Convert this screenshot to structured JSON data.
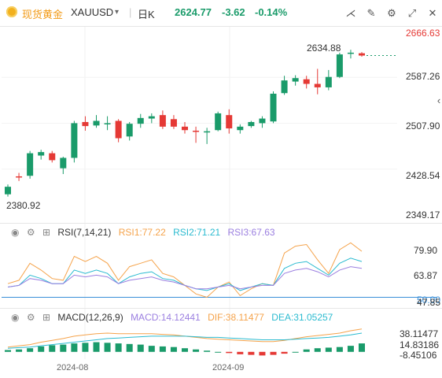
{
  "header": {
    "name": "现货黄金",
    "symbol": "XAUUSD",
    "period": "日K",
    "price": "2624.77",
    "change": "-3.62",
    "change_pct": "-0.14%",
    "colors": {
      "up": "#1a9b6a",
      "down": "#e53935"
    },
    "icons": [
      "gold-coin-icon",
      "chevron-down-icon",
      "compare-icon",
      "draw-icon",
      "settings-icon",
      "fullscreen-icon",
      "close-icon",
      "collapse-panel-icon"
    ]
  },
  "chart_data": [
    {
      "type": "candlestick",
      "title": "XAUUSD 日K",
      "x_tick_labels": [
        "2024-08",
        "2024-09"
      ],
      "y_tick_labels": [
        "2666.63",
        "2587.26",
        "2507.90",
        "2428.54",
        "2349.17"
      ],
      "ylim": [
        2349.17,
        2666.63
      ],
      "annotations": {
        "high": "2634.88",
        "low": "2380.92"
      },
      "candles": [
        {
          "o": 2385,
          "h": 2402,
          "l": 2381,
          "c": 2398
        },
        {
          "o": 2416,
          "h": 2422,
          "l": 2408,
          "c": 2414
        },
        {
          "o": 2417,
          "h": 2460,
          "l": 2412,
          "c": 2456
        },
        {
          "o": 2452,
          "h": 2462,
          "l": 2445,
          "c": 2458
        },
        {
          "o": 2456,
          "h": 2460,
          "l": 2440,
          "c": 2444
        },
        {
          "o": 2430,
          "h": 2450,
          "l": 2420,
          "c": 2448
        },
        {
          "o": 2448,
          "h": 2512,
          "l": 2440,
          "c": 2508
        },
        {
          "o": 2510,
          "h": 2520,
          "l": 2495,
          "c": 2503
        },
        {
          "o": 2504,
          "h": 2522,
          "l": 2500,
          "c": 2512
        },
        {
          "o": 2508,
          "h": 2520,
          "l": 2496,
          "c": 2508
        },
        {
          "o": 2512,
          "h": 2515,
          "l": 2475,
          "c": 2482
        },
        {
          "o": 2485,
          "h": 2510,
          "l": 2478,
          "c": 2507
        },
        {
          "o": 2507,
          "h": 2524,
          "l": 2500,
          "c": 2517
        },
        {
          "o": 2516,
          "h": 2525,
          "l": 2508,
          "c": 2520
        },
        {
          "o": 2522,
          "h": 2530,
          "l": 2498,
          "c": 2502
        },
        {
          "o": 2515,
          "h": 2522,
          "l": 2498,
          "c": 2502
        },
        {
          "o": 2502,
          "h": 2510,
          "l": 2490,
          "c": 2496
        },
        {
          "o": 2495,
          "h": 2502,
          "l": 2474,
          "c": 2493
        },
        {
          "o": 2492,
          "h": 2500,
          "l": 2472,
          "c": 2494
        },
        {
          "o": 2496,
          "h": 2528,
          "l": 2494,
          "c": 2525
        },
        {
          "o": 2522,
          "h": 2532,
          "l": 2490,
          "c": 2499
        },
        {
          "o": 2496,
          "h": 2506,
          "l": 2490,
          "c": 2502
        },
        {
          "o": 2503,
          "h": 2512,
          "l": 2500,
          "c": 2510
        },
        {
          "o": 2508,
          "h": 2520,
          "l": 2500,
          "c": 2516
        },
        {
          "o": 2511,
          "h": 2563,
          "l": 2508,
          "c": 2559
        },
        {
          "o": 2560,
          "h": 2590,
          "l": 2557,
          "c": 2582
        },
        {
          "o": 2580,
          "h": 2591,
          "l": 2573,
          "c": 2586
        },
        {
          "o": 2584,
          "h": 2590,
          "l": 2568,
          "c": 2576
        },
        {
          "o": 2576,
          "h": 2602,
          "l": 2558,
          "c": 2570
        },
        {
          "o": 2570,
          "h": 2600,
          "l": 2565,
          "c": 2588
        },
        {
          "o": 2588,
          "h": 2630,
          "l": 2586,
          "c": 2627
        },
        {
          "o": 2629,
          "h": 2635,
          "l": 2620,
          "c": 2630
        },
        {
          "o": 2629,
          "h": 2631,
          "l": 2623,
          "c": 2625
        }
      ]
    },
    {
      "type": "line",
      "title": "RSI(7,14,21)",
      "y_tick_labels": [
        "79.90",
        "63.87",
        "50.00",
        "47.85"
      ],
      "ylim": [
        47,
        84
      ],
      "series": [
        {
          "name": "RSI1",
          "label": "RSI1:77.22",
          "color": "#f5a34b",
          "values": [
            58,
            60,
            70,
            66,
            61,
            60,
            74,
            71,
            74,
            70,
            60,
            68,
            70,
            72,
            64,
            62,
            57,
            52,
            50,
            56,
            59,
            51,
            55,
            58,
            57,
            76,
            80,
            81,
            72,
            64,
            78,
            82,
            77
          ]
        },
        {
          "name": "RSI2",
          "label": "RSI2:71.21",
          "color": "#2bbbd0",
          "values": [
            56,
            57,
            63,
            61,
            58,
            58,
            66,
            64,
            66,
            64,
            58,
            62,
            64,
            65,
            61,
            60,
            57,
            55,
            54,
            56,
            58,
            54,
            56,
            58,
            57,
            67,
            70,
            71,
            67,
            63,
            70,
            73,
            71
          ]
        },
        {
          "name": "RSI3",
          "label": "RSI3:67.63",
          "color": "#9b7fe0",
          "values": [
            56,
            57,
            61,
            60,
            58,
            58,
            63,
            62,
            63,
            62,
            58,
            60,
            61,
            62,
            60,
            59,
            57,
            55,
            55,
            56,
            57,
            55,
            56,
            57,
            57,
            64,
            66,
            67,
            65,
            62,
            66,
            68,
            67
          ]
        }
      ]
    },
    {
      "type": "bar+line",
      "title": "MACD(12,26,9)",
      "y_tick_labels": [
        "38.11477",
        "14.83186",
        "-8.45106"
      ],
      "ylim": [
        -12,
        48
      ],
      "series": [
        {
          "name": "MACD",
          "label": "MACD:14.12441",
          "type": "bar",
          "values": [
            3,
            4,
            6,
            9,
            11,
            12,
            14,
            15,
            16,
            15,
            14,
            13,
            12,
            10,
            9,
            8,
            6,
            4,
            2,
            0,
            -2,
            -4,
            -5,
            -6,
            -5,
            -3,
            0,
            4,
            6,
            7,
            8,
            10,
            14
          ]
        },
        {
          "name": "DIF",
          "label": "DIF:38.11477",
          "color": "#f5a34b",
          "values": [
            8,
            10,
            12,
            16,
            19,
            22,
            26,
            28,
            30,
            31,
            30,
            30,
            30,
            30,
            29,
            28,
            26,
            24,
            22,
            21,
            20,
            19,
            18,
            17,
            17,
            19,
            22,
            25,
            27,
            29,
            31,
            35,
            38
          ]
        },
        {
          "name": "DEA",
          "label": "DEA:31.05257",
          "color": "#2bbbd0",
          "values": [
            6,
            7,
            8,
            10,
            12,
            14,
            16,
            18,
            20,
            22,
            23,
            24,
            25,
            26,
            26,
            26,
            26,
            25,
            24,
            24,
            23,
            22,
            21,
            20,
            20,
            20,
            21,
            22,
            23,
            24,
            26,
            28,
            31
          ]
        }
      ]
    }
  ],
  "indicators": {
    "rsi": {
      "name": "RSI(7,14,21)",
      "r1": "RSI1:77.22",
      "r2": "RSI2:71.21",
      "r3": "RSI3:67.63"
    },
    "macd": {
      "name": "MACD(12,26,9)",
      "m": "MACD:14.12441",
      "dif": "DIF:38.11477",
      "dea": "DEA:31.05257"
    }
  }
}
